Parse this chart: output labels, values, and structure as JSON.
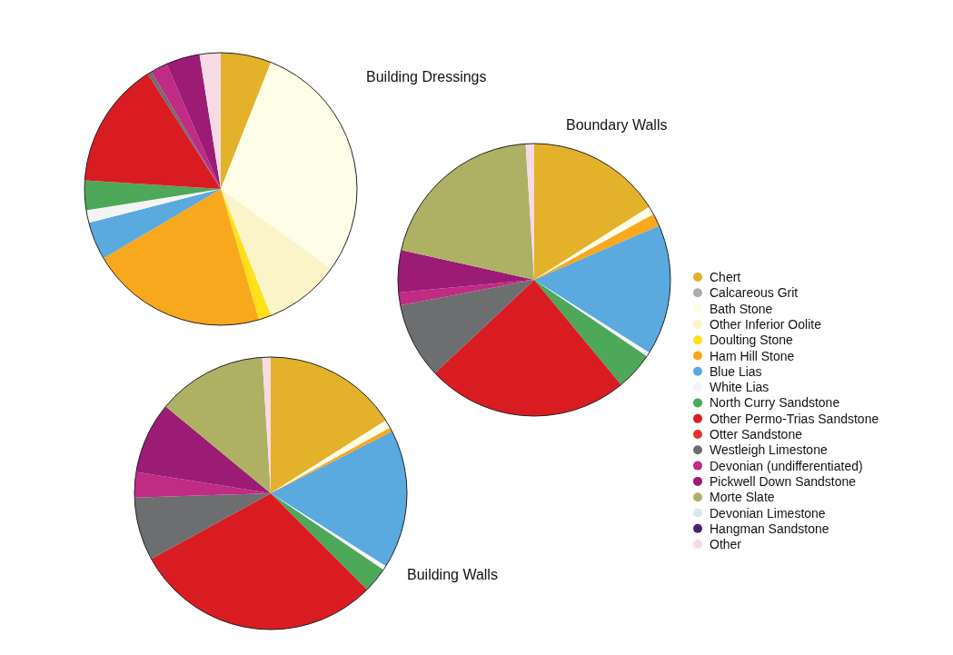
{
  "chart_data": [
    {
      "type": "pie",
      "title": "Building Dressings",
      "legend": "right",
      "categories": [
        "Chert",
        "Calcareous Grit",
        "Bath Stone",
        "Other Inferior Oolite",
        "Doulting Stone",
        "Ham Hill Stone",
        "Blue Lias",
        "White Lias",
        "North Curry Sandstone",
        "Other Permo-Trias Sandstone",
        "Otter Sandstone",
        "Westleigh Limestone",
        "Devonian (undifferentiated)",
        "Pickwell Down Sandstone",
        "Morte Slate",
        "Devonian Limestone",
        "Hangman Sandstone",
        "Other"
      ],
      "values": [
        6,
        0,
        29,
        9,
        1.5,
        21,
        4.5,
        1.5,
        3.5,
        15,
        0,
        0.5,
        2,
        4,
        0,
        0,
        0,
        2.5
      ],
      "colors": [
        "#e3b12a",
        "#a9abad",
        "#fdfde8",
        "#fbf4c8",
        "#ffe019",
        "#f8a81c",
        "#5aa9df",
        "#f4f4f4",
        "#4da85a",
        "#d91c22",
        "#e4342c",
        "#6c6e70",
        "#c02b86",
        "#9c1b74",
        "#aeb164",
        "#dde6ec",
        "#4b1f6f",
        "#f7dbe4"
      ]
    },
    {
      "type": "pie",
      "title": "Boundary Walls",
      "categories": [
        null,
        null,
        null,
        null,
        null,
        null,
        null,
        null,
        null,
        null,
        null,
        null,
        null,
        null,
        null,
        null,
        null,
        null
      ],
      "values": [
        16,
        0,
        1,
        0,
        0,
        1.5,
        15.5,
        0.5,
        4.5,
        24,
        0,
        9,
        1.5,
        5,
        20.5,
        0,
        0,
        1
      ],
      "colors": [
        "#e3b12a",
        "#a9abad",
        "#fdfde8",
        "#fbf4c8",
        "#ffe019",
        "#f8a81c",
        "#5aa9df",
        "#f4f4f4",
        "#4da85a",
        "#d91c22",
        "#e4342c",
        "#6c6e70",
        "#c02b86",
        "#9c1b74",
        "#aeb164",
        "#dde6ec",
        "#4b1f6f",
        "#f7dbe4"
      ]
    },
    {
      "type": "pie",
      "title": "Building Walls",
      "categories": [
        null,
        null,
        null,
        null,
        null,
        null,
        null,
        null,
        null,
        null,
        null,
        null,
        null,
        null,
        null,
        null,
        null,
        null
      ],
      "values": [
        16,
        0,
        1,
        0,
        0,
        0.5,
        16.5,
        0.5,
        3,
        29.5,
        0,
        7.5,
        3,
        8.5,
        13,
        0,
        0,
        1
      ],
      "colors": [
        "#e3b12a",
        "#a9abad",
        "#fdfde8",
        "#fbf4c8",
        "#ffe019",
        "#f8a81c",
        "#5aa9df",
        "#f4f4f4",
        "#4da85a",
        "#d91c22",
        "#e4342c",
        "#6c6e70",
        "#c02b86",
        "#9c1b74",
        "#aeb164",
        "#dde6ec",
        "#4b1f6f",
        "#f7dbe4"
      ]
    }
  ]
}
